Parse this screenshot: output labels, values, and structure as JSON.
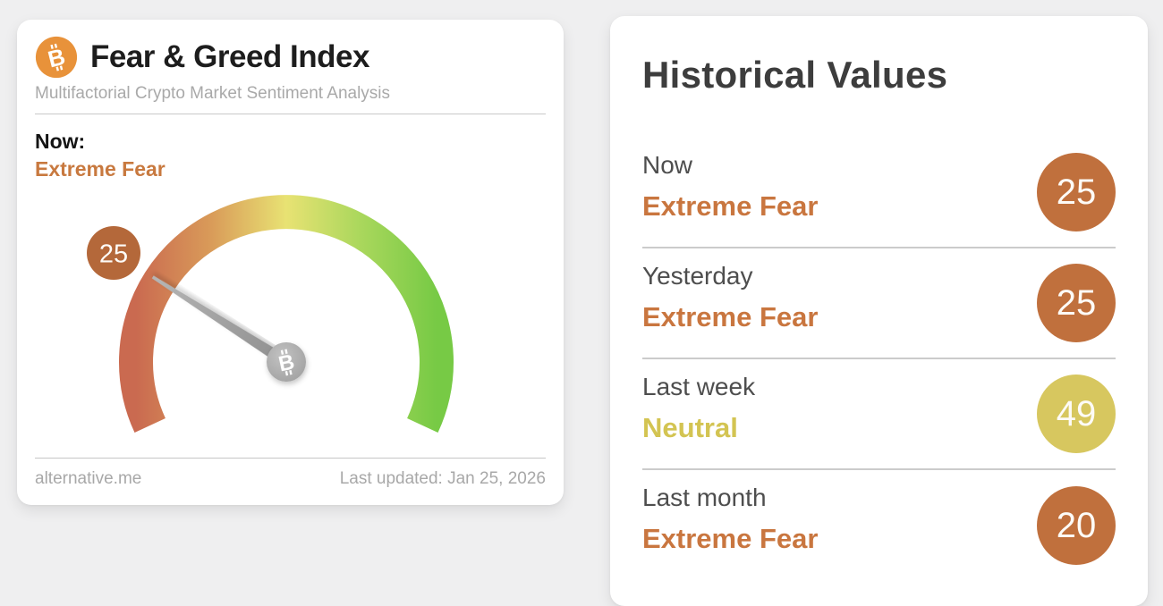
{
  "page": {
    "background": "#efeff0"
  },
  "gauge_card": {
    "icon": {
      "letter": "B",
      "color": "#e8923a"
    },
    "title": "Fear & Greed Index",
    "subtitle": "Multifactorial Crypto Market Sentiment Analysis",
    "now_label": "Now:",
    "now_status": "Extreme Fear",
    "now_status_color": "#c8793f",
    "gauge": {
      "value": 25,
      "min": 0,
      "max": 100,
      "badge_color": "#b4683a",
      "arc_gradient": [
        "#ca6a50",
        "#d99b59",
        "#e8e273",
        "#a9d75c",
        "#77ca45"
      ],
      "hub_letter": "B"
    },
    "footer": {
      "source": "alternative.me",
      "last_updated": "Last updated: Jan 25, 2026"
    }
  },
  "historical_card": {
    "title": "Historical Values",
    "rows": [
      {
        "label": "Now",
        "status": "Extreme Fear",
        "value": "25",
        "status_color": "#c9763f",
        "badge_color": "#c0703d"
      },
      {
        "label": "Yesterday",
        "status": "Extreme Fear",
        "value": "25",
        "status_color": "#c9763f",
        "badge_color": "#c0703d"
      },
      {
        "label": "Last week",
        "status": "Neutral",
        "value": "49",
        "status_color": "#d3c452",
        "badge_color": "#d7c75f"
      },
      {
        "label": "Last month",
        "status": "Extreme Fear",
        "value": "20",
        "status_color": "#c9763f",
        "badge_color": "#c0703d"
      }
    ]
  },
  "chart_data": {
    "type": "gauge",
    "title": "Fear & Greed Index",
    "value": 25,
    "range": [
      0,
      100
    ],
    "value_label": "Extreme Fear",
    "historical": [
      {
        "period": "Now",
        "value": 25,
        "label": "Extreme Fear"
      },
      {
        "period": "Yesterday",
        "value": 25,
        "label": "Extreme Fear"
      },
      {
        "period": "Last week",
        "value": 49,
        "label": "Neutral"
      },
      {
        "period": "Last month",
        "value": 20,
        "label": "Extreme Fear"
      }
    ]
  }
}
